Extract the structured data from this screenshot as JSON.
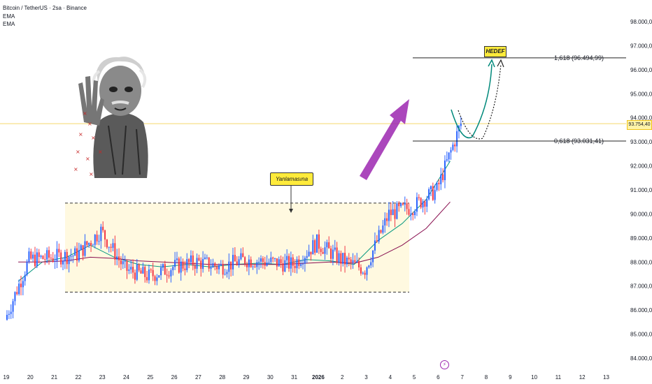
{
  "header": {
    "title": "Bitcoin / TetherUS · 2sa · Binance",
    "indicators": [
      "EMA",
      "EMA"
    ]
  },
  "price_axis": {
    "labels": [
      "98.000,00",
      "97.000,00",
      "96.000,00",
      "95.000,00",
      "94.000,00",
      "93.000,00",
      "92.000,00",
      "91.000,00",
      "90.000,00",
      "89.000,00",
      "88.000,00",
      "87.000,00",
      "86.000,00",
      "85.000,00",
      "84.000,00"
    ],
    "current_price": "93.754,40"
  },
  "time_axis": {
    "labels": [
      "19",
      "20",
      "21",
      "22",
      "23",
      "24",
      "25",
      "26",
      "27",
      "28",
      "29",
      "30",
      "31",
      "2026",
      "2",
      "3",
      "4",
      "5",
      "6",
      "7",
      "8",
      "9",
      "10",
      "11",
      "12",
      "13"
    ]
  },
  "annotations": {
    "range_label": "Yanlamasına",
    "target_label": "HEDEF",
    "fib_1618": "1,618 (96.494,99)",
    "fib_0618": "0,618 (93.031,41)"
  },
  "colors": {
    "up": "#2962ff",
    "down": "#f23645",
    "ema_fast": "#089981",
    "ema_slow": "#880e4f",
    "range_fill": "#fff9e0",
    "label_bg": "#ffeb3b",
    "arrow": "#9c27b0",
    "price_line": "#f5d96b"
  },
  "chart_data": {
    "type": "candlestick",
    "symbol": "Bitcoin / TetherUS",
    "interval": "2sa",
    "exchange": "Binance",
    "ylim": [
      84000,
      98000
    ],
    "x": [
      "19",
      "20",
      "21",
      "22",
      "23",
      "24",
      "25",
      "26",
      "27",
      "28",
      "29",
      "30",
      "31",
      "2026",
      "2",
      "3",
      "4",
      "5",
      "6"
    ],
    "close": [
      88100,
      88200,
      88300,
      89300,
      87700,
      87400,
      87800,
      88000,
      87800,
      88100,
      88000,
      87900,
      88800,
      88100,
      87700,
      90000,
      90300,
      91000,
      93754.4
    ],
    "series": [
      {
        "name": "EMA",
        "values": [
          87200,
          88000,
          88200,
          88700,
          88200,
          87900,
          87800,
          87900,
          87800,
          87900,
          87950,
          87900,
          88100,
          88050,
          87900,
          88900,
          89600,
          90600,
          92200
        ]
      },
      {
        "name": "EMA",
        "values": [
          88000,
          88000,
          88050,
          88200,
          88150,
          88050,
          88000,
          87950,
          87900,
          87900,
          87900,
          87900,
          87950,
          88000,
          87950,
          88200,
          88700,
          89400,
          90500
        ]
      }
    ],
    "levels": [
      {
        "label": "1,618",
        "value": 96494.99
      },
      {
        "label": "0,618",
        "value": 93031.41
      }
    ],
    "range_box": {
      "top": 90450,
      "bottom": 86750,
      "label": "Yanlamasına"
    },
    "current_price": 93754.4,
    "target": "HEDEF"
  }
}
